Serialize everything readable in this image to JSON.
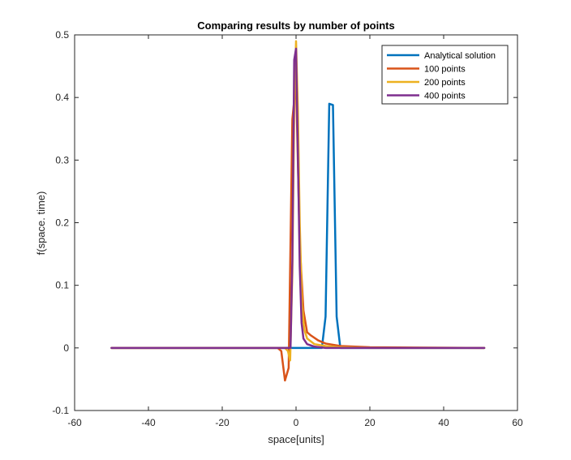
{
  "chart_data": {
    "type": "line",
    "title": "Comparing results by number of points",
    "xlabel": "space[units]",
    "ylabel": "f(space. time)",
    "xlim": [
      -60,
      60
    ],
    "ylim": [
      -0.1,
      0.5
    ],
    "xticks": [
      -60,
      -40,
      -20,
      0,
      20,
      40,
      60
    ],
    "yticks": [
      -0.1,
      0,
      0.1,
      0.2,
      0.3,
      0.4,
      0.5
    ],
    "xtick_labels": [
      "-60",
      "-40",
      "-20",
      "0",
      "20",
      "40",
      "60"
    ],
    "ytick_labels": [
      "-0.1",
      "0",
      "0.1",
      "0.2",
      "0.3",
      "0.4",
      "0.5"
    ],
    "grid": false,
    "legend_position": "top-right",
    "series": [
      {
        "name": "Analytical solution",
        "color": "#0072BD",
        "x": [
          -50,
          7,
          8,
          9,
          10,
          11,
          12,
          51
        ],
        "y": [
          0,
          0,
          0.05,
          0.39,
          0.388,
          0.05,
          0,
          0
        ]
      },
      {
        "name": "100 points",
        "color": "#D95319",
        "x": [
          -50,
          -5,
          -4,
          -3,
          -2,
          -1,
          0,
          1,
          2,
          3,
          4,
          6,
          8,
          12,
          20,
          51
        ],
        "y": [
          0,
          0,
          -0.005,
          -0.052,
          -0.032,
          0.365,
          0.425,
          0.165,
          0.06,
          0.025,
          0.02,
          0.012,
          0.007,
          0.003,
          0.001,
          0
        ]
      },
      {
        "name": "200 points",
        "color": "#EDB120",
        "x": [
          -50,
          -3,
          -2.2,
          -1.6,
          -1,
          -0.5,
          0,
          0.5,
          1,
          1.6,
          2.2,
          3,
          5,
          8,
          12,
          20,
          51
        ],
        "y": [
          0,
          0,
          -0.005,
          -0.02,
          0.12,
          0.38,
          0.49,
          0.38,
          0.2,
          0.07,
          0.03,
          0.015,
          0.006,
          0.003,
          0.001,
          0,
          0
        ]
      },
      {
        "name": "400 points",
        "color": "#7E2F8E",
        "x": [
          -50,
          -1.5,
          -1,
          -0.5,
          0,
          0.5,
          1,
          1.5,
          2,
          3,
          5,
          8,
          51
        ],
        "y": [
          0,
          0,
          0.14,
          0.46,
          0.478,
          0.31,
          0.13,
          0.04,
          0.015,
          0.006,
          0.002,
          0,
          0
        ]
      }
    ]
  }
}
